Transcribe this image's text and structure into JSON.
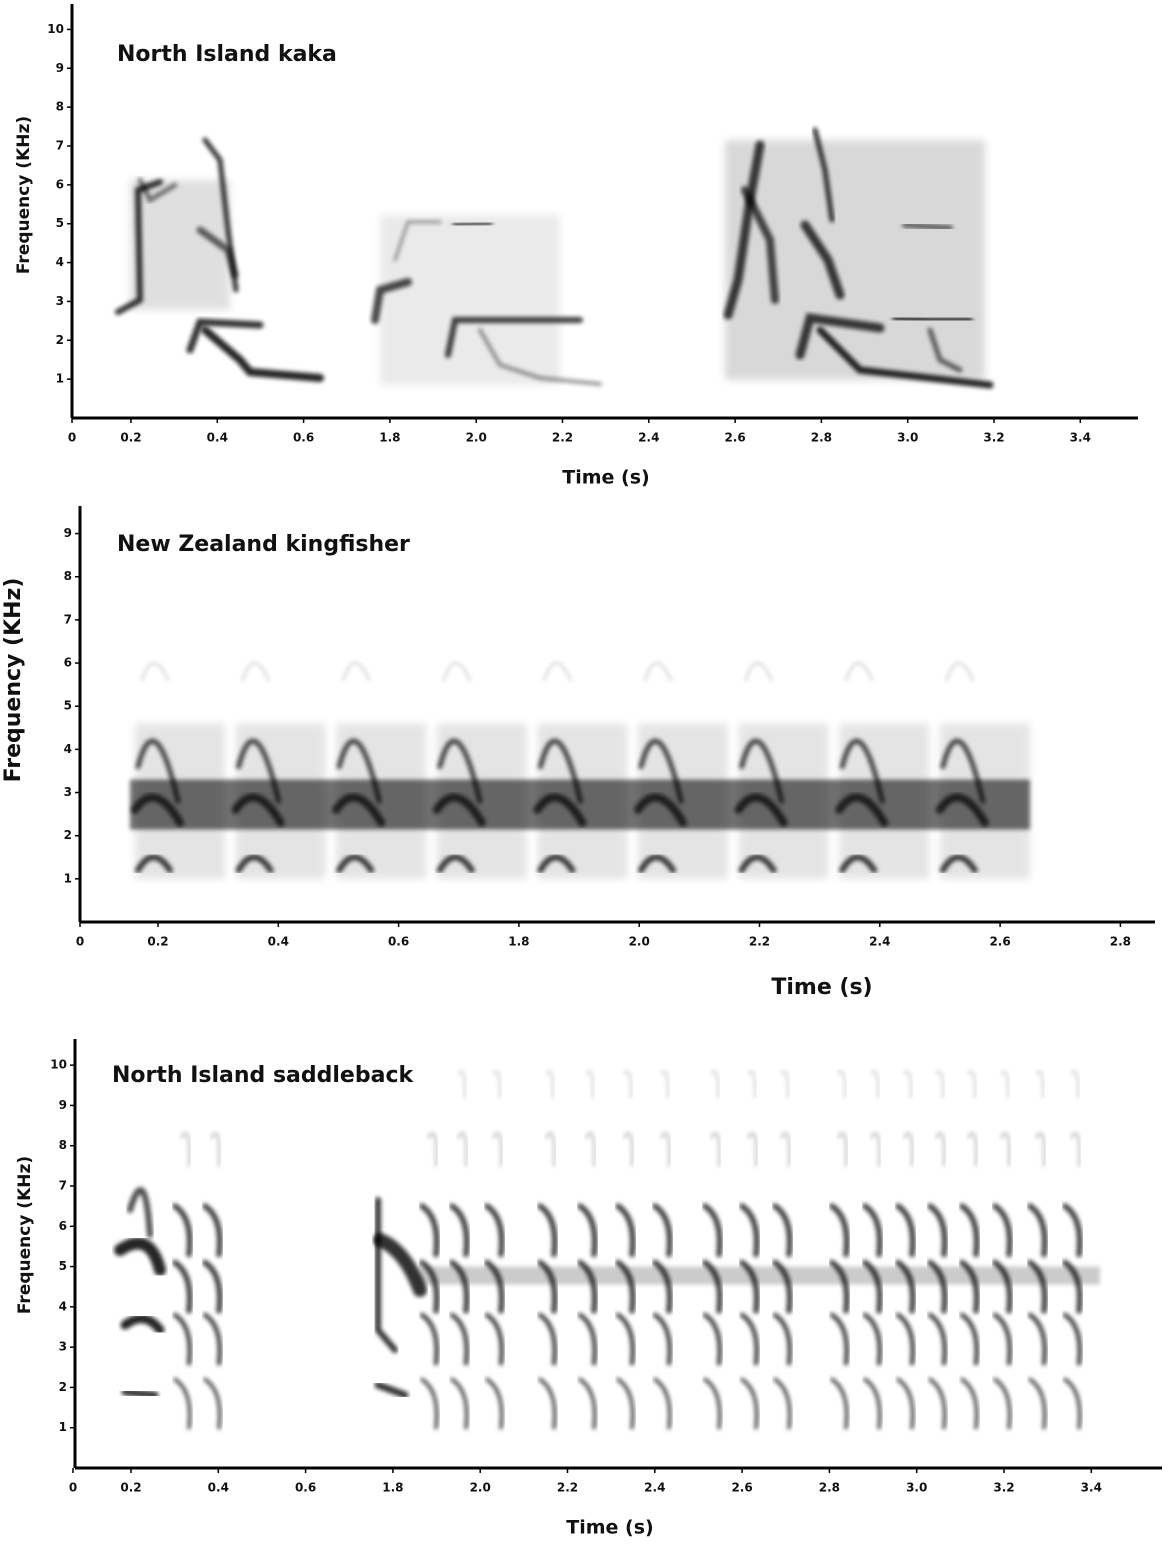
{
  "chart_data": [
    {
      "type": "spectrogram",
      "title": "North Island kaka",
      "xlabel": "Time (s)",
      "ylabel": "Frequency (KHz)",
      "categories": [
        "0",
        "0.2",
        "0.4",
        "0.6",
        "1.8",
        "2.0",
        "2.2",
        "2.4",
        "2.6",
        "2.8",
        "3.0",
        "3.2",
        "3.4"
      ],
      "ylim": [
        0,
        10.5
      ],
      "yticks": [
        1,
        2,
        3,
        4,
        5,
        6,
        7,
        8,
        9,
        10
      ]
    },
    {
      "type": "spectrogram",
      "title": "New Zealand kingfisher",
      "xlabel": "Time (s)",
      "ylabel": "Frequency (KHz)",
      "categories": [
        "0",
        "0.2",
        "0.4",
        "0.6",
        "1.8",
        "2.0",
        "2.2",
        "2.4",
        "2.6",
        "2.8"
      ],
      "ylim": [
        0,
        9.5
      ],
      "yticks": [
        1,
        2,
        3,
        4,
        5,
        6,
        7,
        8,
        9
      ]
    },
    {
      "type": "spectrogram",
      "title": "North Island saddleback",
      "xlabel": "Time (s)",
      "ylabel": "Frequency (KHz)",
      "categories": [
        "0",
        "0.2",
        "0.4",
        "0.6",
        "1.8",
        "2.0",
        "2.2",
        "2.4",
        "2.6",
        "2.8",
        "3.0",
        "3.2",
        "3.4"
      ],
      "ylim": [
        0,
        10.5
      ],
      "yticks": [
        1,
        2,
        3,
        4,
        5,
        6,
        7,
        8,
        9,
        10
      ]
    }
  ]
}
